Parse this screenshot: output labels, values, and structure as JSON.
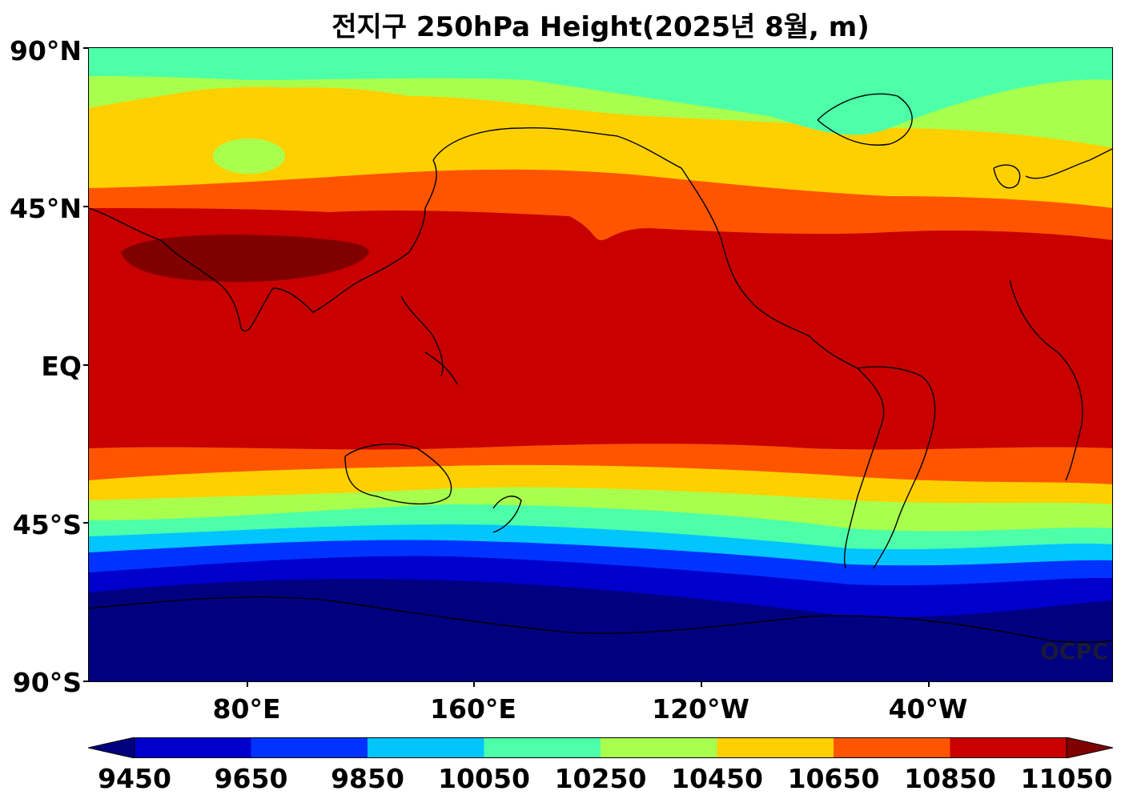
{
  "title": "전지구 250hPa Height(2025년 8월, m)",
  "watermark": "OCPC",
  "lat_ticks": [
    "90°N",
    "45°N",
    "EQ",
    "45°S",
    "90°S"
  ],
  "lon_ticks": [
    "80°E",
    "160°E",
    "120°W",
    "40°W"
  ],
  "colorbar": {
    "ticks": [
      "9450",
      "9650",
      "9850",
      "10050",
      "10250",
      "10450",
      "10650",
      "10850",
      "11050"
    ],
    "colors": [
      "#000080",
      "#0000cd",
      "#0033ff",
      "#00c5ff",
      "#4dffa8",
      "#a8ff4d",
      "#ffd000",
      "#ff5500",
      "#c80000",
      "#800000"
    ],
    "extend": "both"
  },
  "chart_data": {
    "type": "heatmap",
    "variable": "250hPa Height",
    "units": "m",
    "levels": [
      9450,
      9650,
      9850,
      10050,
      10250,
      10450,
      10650,
      10850,
      11050
    ],
    "bands": [
      {
        "level": "<9450",
        "lat_range": [
          -90,
          -67
        ],
        "color": "#000080"
      },
      {
        "level": "9450-9650",
        "lat_range": [
          -67,
          -61
        ],
        "color": "#0000cd"
      },
      {
        "level": "9650-9850",
        "lat_range": [
          -61,
          -57
        ],
        "color": "#0033ff"
      },
      {
        "level": "9850-10050",
        "lat_range": [
          -57,
          -52
        ],
        "color": "#00c5ff"
      },
      {
        "level": "10050-10250",
        "lat_range": [
          -52,
          -47
        ],
        "color": "#4dffa8"
      },
      {
        "level": "10250-10450",
        "lat_range": [
          -47,
          -40
        ],
        "color": "#a8ff4d"
      },
      {
        "level": "10450-10650",
        "lat_range": [
          -40,
          -34
        ],
        "color": "#ffd000"
      },
      {
        "level": "10650-10850",
        "lat_range": [
          -34,
          -24
        ],
        "color": "#ff5500"
      },
      {
        "level": "10850-11050",
        "lat_range": [
          -24,
          46
        ],
        "color": "#c80000"
      },
      {
        "level": ">11050",
        "region": "Middle East to East Asia",
        "lat_range": [
          25,
          38
        ],
        "lon_range": [
          40,
          140
        ],
        "color": "#800000"
      },
      {
        "level": "10650-10850",
        "lat_range": [
          46,
          50
        ],
        "color": "#ff5500"
      },
      {
        "level": "10450-10650",
        "lat_range": [
          50,
          63
        ],
        "color": "#ffd000"
      },
      {
        "level": "10250-10450",
        "lat_range": [
          63,
          72
        ],
        "color": "#a8ff4d"
      },
      {
        "level": "10050-10250",
        "lat_range": [
          72,
          90
        ],
        "color": "#4dffa8"
      }
    ],
    "xlim": [
      "20°E",
      "20°E (360° span)"
    ],
    "ylim": [
      -90,
      90
    ]
  }
}
